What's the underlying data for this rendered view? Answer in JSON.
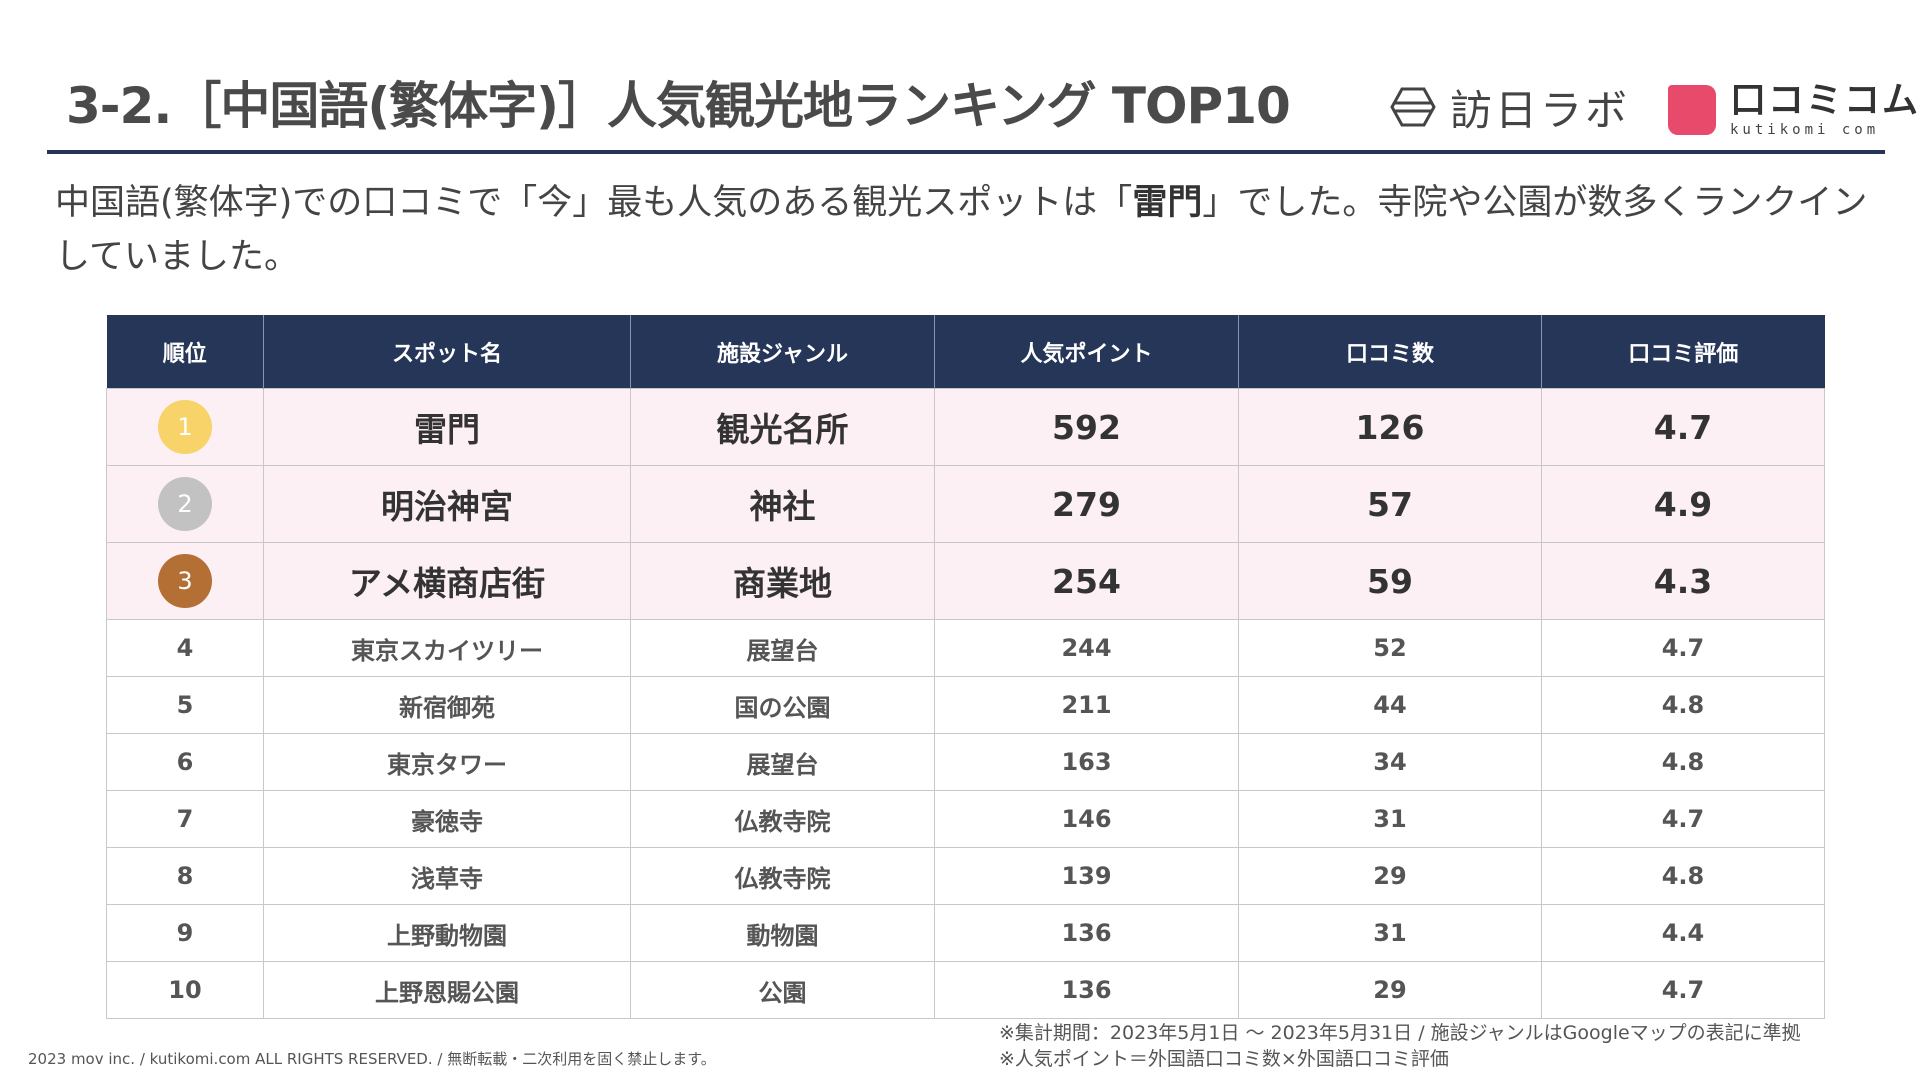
{
  "title": "3-2.［中国語(繁体字)］人気観光地ランキング TOP10",
  "logos": {
    "houni": "訪日ラボ",
    "kuti_jp": "口コミコム",
    "kuti_en": "kutikomi com",
    "kuti_color": "#e84a6c"
  },
  "intro": {
    "before": "中国語(繁体字)での口コミで「今」最も人気のある観光スポットは「",
    "highlight": "雷門",
    "after": "」でした。寺院や公園が数多くランクインしていました。"
  },
  "table": {
    "headers": [
      "順位",
      "スポット名",
      "施設ジャンル",
      "人気ポイント",
      "口コミ数",
      "口コミ評価"
    ],
    "rows": [
      {
        "rank": "1",
        "name": "雷門",
        "genre": "観光名所",
        "points": "592",
        "reviews": "126",
        "rating": "4.7"
      },
      {
        "rank": "2",
        "name": "明治神宮",
        "genre": "神社",
        "points": "279",
        "reviews": "57",
        "rating": "4.9"
      },
      {
        "rank": "3",
        "name": "アメ横商店街",
        "genre": "商業地",
        "points": "254",
        "reviews": "59",
        "rating": "4.3"
      },
      {
        "rank": "4",
        "name": "東京スカイツリー",
        "genre": "展望台",
        "points": "244",
        "reviews": "52",
        "rating": "4.7"
      },
      {
        "rank": "5",
        "name": "新宿御苑",
        "genre": "国の公園",
        "points": "211",
        "reviews": "44",
        "rating": "4.8"
      },
      {
        "rank": "6",
        "name": "東京タワー",
        "genre": "展望台",
        "points": "163",
        "reviews": "34",
        "rating": "4.8"
      },
      {
        "rank": "7",
        "name": "豪徳寺",
        "genre": "仏教寺院",
        "points": "146",
        "reviews": "31",
        "rating": "4.7"
      },
      {
        "rank": "8",
        "name": "浅草寺",
        "genre": "仏教寺院",
        "points": "139",
        "reviews": "29",
        "rating": "4.8"
      },
      {
        "rank": "9",
        "name": "上野動物園",
        "genre": "動物園",
        "points": "136",
        "reviews": "31",
        "rating": "4.4"
      },
      {
        "rank": "10",
        "name": "上野恩賜公園",
        "genre": "公園",
        "points": "136",
        "reviews": "29",
        "rating": "4.7"
      }
    ],
    "medal_colors": [
      "#f7d36a",
      "#c2c2c2",
      "#b46f34"
    ],
    "header_color": "#263659",
    "highlight_row_color": "#fdf0f5"
  },
  "notes": [
    "※集計期間：2023年5月1日 ～ 2023年5月31日 / 施設ジャンルはGoogleマップの表記に準拠",
    "※人気ポイント＝外国語口コミ数×外国語口コミ評価"
  ],
  "footer": "2023 mov inc. / kutikomi.com ALL RIGHTS RESERVED. / 無断転載・二次利用を固く禁止します。"
}
